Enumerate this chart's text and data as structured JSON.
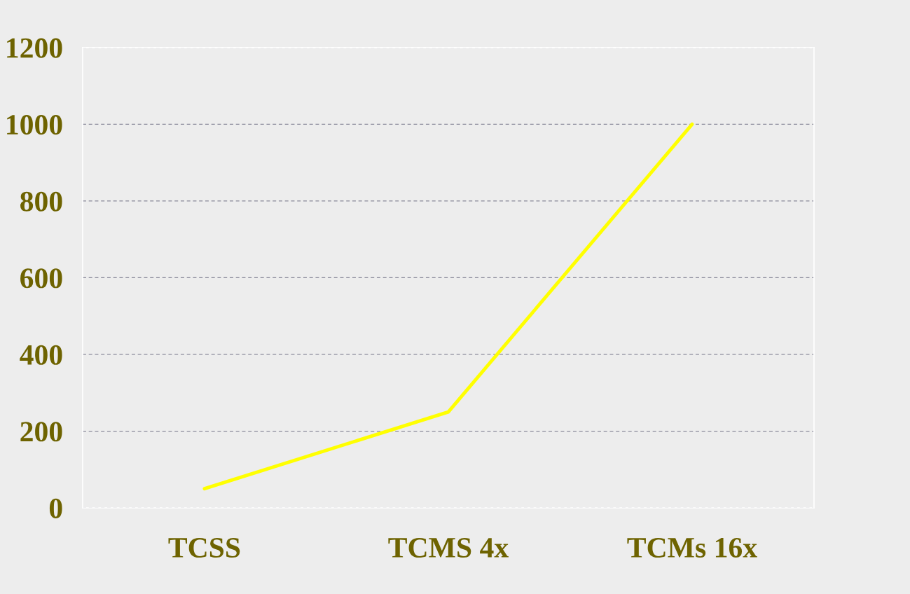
{
  "chart_data": {
    "type": "line",
    "categories": [
      "TCSS",
      "TCMS 4x",
      "TCMs 16x"
    ],
    "series": [
      {
        "color": "#ffff00",
        "values": [
          50,
          250,
          1000
        ]
      }
    ],
    "ylim": [
      0,
      1200
    ],
    "yticks": [
      0,
      200,
      400,
      600,
      800,
      1000,
      1200
    ],
    "grid": "y",
    "legend": false,
    "marker": "none",
    "line_style": "solid"
  }
}
